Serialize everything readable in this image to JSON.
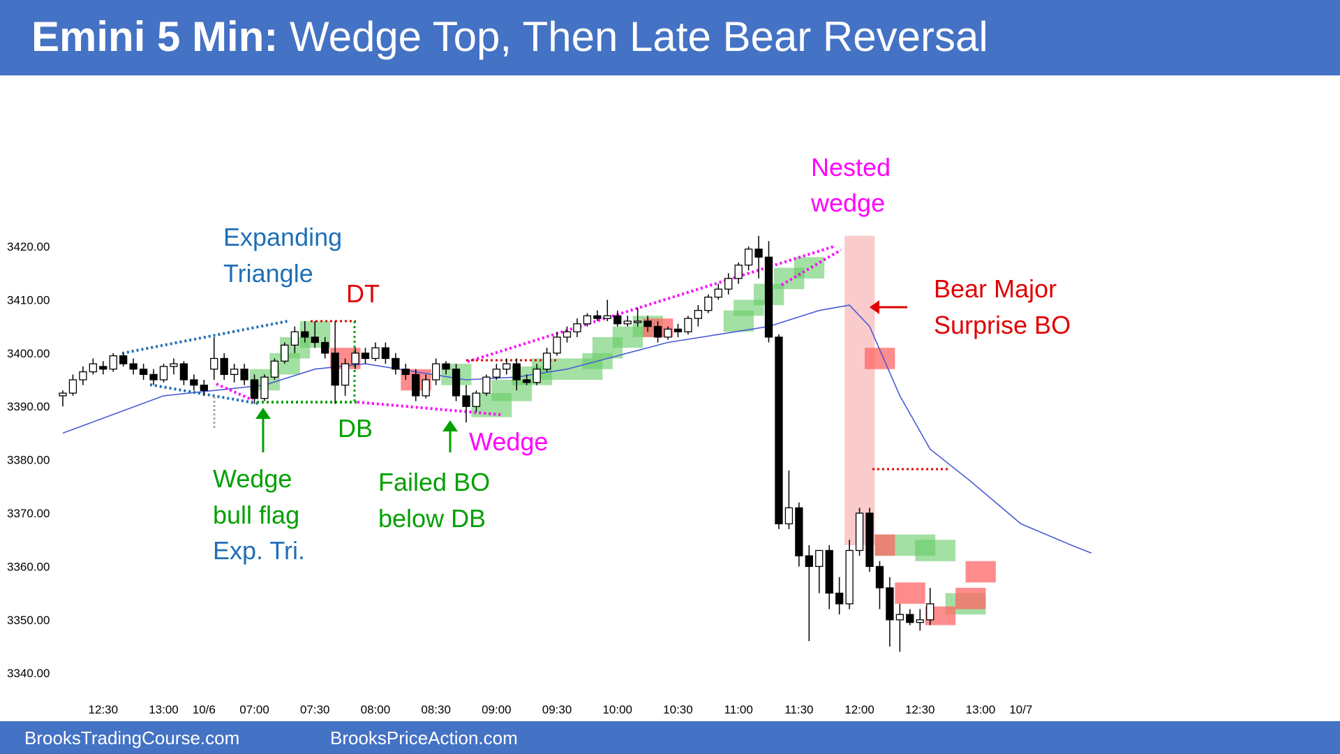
{
  "header": {
    "title_bold": "Emini 5 Min:",
    "title_rest": " Wedge Top, Then Late Bear Reversal"
  },
  "footer": {
    "left": "BrooksTradingCourse.com",
    "right": "BrooksPriceAction.com"
  },
  "colors": {
    "banner": "#4472C4",
    "bull_box": "#66CC66",
    "bear_box": "#FF6666",
    "ema": "#4B5BD6",
    "magenta": "#FF00FF",
    "green_text": "#00A000",
    "blue_text": "#1F6FB5",
    "red_text": "#E00000"
  },
  "chart_data": {
    "type": "candlestick",
    "y_ticks": [
      "3420.00",
      "3410.00",
      "3400.00",
      "3390.00",
      "3380.00",
      "3370.00",
      "3360.00",
      "3350.00",
      "3340.00"
    ],
    "ylim": [
      3336,
      3428
    ],
    "x_ticks": [
      {
        "label": "12:30",
        "bar": 4
      },
      {
        "label": "13:00",
        "bar": 10
      },
      {
        "label": "10/6",
        "bar": 14
      },
      {
        "label": "07:00",
        "bar": 19
      },
      {
        "label": "07:30",
        "bar": 25
      },
      {
        "label": "08:00",
        "bar": 31
      },
      {
        "label": "08:30",
        "bar": 37
      },
      {
        "label": "09:00",
        "bar": 43
      },
      {
        "label": "09:30",
        "bar": 49
      },
      {
        "label": "10:00",
        "bar": 55
      },
      {
        "label": "10:30",
        "bar": 61
      },
      {
        "label": "11:00",
        "bar": 67
      },
      {
        "label": "11:30",
        "bar": 73
      },
      {
        "label": "12:00",
        "bar": 79
      },
      {
        "label": "12:30",
        "bar": 85
      },
      {
        "label": "13:00",
        "bar": 91
      },
      {
        "label": "10/7",
        "bar": 95
      }
    ],
    "candles": [
      [
        3392,
        3393,
        3390,
        3392.5
      ],
      [
        3392.5,
        3396,
        3392,
        3395
      ],
      [
        3395,
        3397.5,
        3394,
        3396.5
      ],
      [
        3396.5,
        3399,
        3396,
        3398
      ],
      [
        3397.5,
        3398.5,
        3396,
        3397
      ],
      [
        3397,
        3400,
        3396.5,
        3399.5
      ],
      [
        3399.5,
        3400,
        3397.5,
        3398
      ],
      [
        3398,
        3399,
        3396,
        3397
      ],
      [
        3397,
        3398,
        3395,
        3396
      ],
      [
        3396,
        3397,
        3394,
        3395
      ],
      [
        3395,
        3398,
        3394.5,
        3397.5
      ],
      [
        3397.5,
        3399,
        3396,
        3398
      ],
      [
        3398,
        3398.5,
        3394,
        3395
      ],
      [
        3395,
        3396,
        3393,
        3394
      ],
      [
        3394,
        3395,
        3392,
        3393
      ],
      [
        3397,
        3403,
        3395,
        3399
      ],
      [
        3399,
        3400,
        3395,
        3396
      ],
      [
        3396,
        3398,
        3394.5,
        3397
      ],
      [
        3397,
        3398,
        3394,
        3395
      ],
      [
        3395,
        3396,
        3390.5,
        3391.5
      ],
      [
        3391.5,
        3396,
        3391,
        3395.5
      ],
      [
        3395.5,
        3399,
        3395,
        3398.5
      ],
      [
        3398.5,
        3402,
        3398,
        3401.5
      ],
      [
        3401.5,
        3405,
        3400,
        3404
      ],
      [
        3404,
        3406,
        3402,
        3403
      ],
      [
        3403,
        3406,
        3401,
        3402
      ],
      [
        3402,
        3403,
        3399,
        3400
      ],
      [
        3400,
        3406,
        3390.5,
        3394
      ],
      [
        3394,
        3399,
        3392,
        3398
      ],
      [
        3398,
        3401,
        3397,
        3400
      ],
      [
        3400,
        3401,
        3398,
        3399
      ],
      [
        3399,
        3402,
        3398.5,
        3401
      ],
      [
        3401,
        3402,
        3398,
        3399
      ],
      [
        3399,
        3400,
        3396,
        3397
      ],
      [
        3397,
        3398,
        3395,
        3396
      ],
      [
        3396,
        3397,
        3391,
        3392
      ],
      [
        3392,
        3396,
        3391.5,
        3395
      ],
      [
        3395,
        3399,
        3394,
        3398
      ],
      [
        3398,
        3398.5,
        3396,
        3397
      ],
      [
        3397,
        3398,
        3391,
        3392
      ],
      [
        3392,
        3394,
        3387,
        3390
      ],
      [
        3390,
        3393,
        3389,
        3392.5
      ],
      [
        3392.5,
        3396,
        3392,
        3395.5
      ],
      [
        3395.5,
        3398,
        3395,
        3397
      ],
      [
        3397,
        3399,
        3396,
        3398
      ],
      [
        3398,
        3399,
        3393,
        3395
      ],
      [
        3395,
        3396,
        3394,
        3394.5
      ],
      [
        3394.5,
        3398,
        3394,
        3397
      ],
      [
        3397,
        3401,
        3396.5,
        3400
      ],
      [
        3400,
        3404,
        3399.5,
        3403
      ],
      [
        3403,
        3405,
        3402,
        3404
      ],
      [
        3404,
        3406.5,
        3403,
        3405.5
      ],
      [
        3405.5,
        3407.5,
        3405,
        3407
      ],
      [
        3407,
        3408,
        3406,
        3406.5
      ],
      [
        3406.5,
        3410,
        3406,
        3407
      ],
      [
        3407,
        3408,
        3405,
        3405.5
      ],
      [
        3405.5,
        3407,
        3405,
        3406
      ],
      [
        3406,
        3408.5,
        3405,
        3406
      ],
      [
        3406,
        3407,
        3404,
        3405
      ],
      [
        3405,
        3406,
        3402,
        3403
      ],
      [
        3403,
        3405,
        3402.5,
        3404.5
      ],
      [
        3404.5,
        3405.5,
        3403,
        3404
      ],
      [
        3404,
        3407,
        3403.5,
        3406.5
      ],
      [
        3406.5,
        3409,
        3405,
        3408
      ],
      [
        3408,
        3411,
        3407.5,
        3410.5
      ],
      [
        3410.5,
        3413,
        3410,
        3412
      ],
      [
        3412,
        3415,
        3411,
        3414
      ],
      [
        3414,
        3417,
        3413,
        3416.5
      ],
      [
        3416.5,
        3420,
        3415.5,
        3419.5
      ],
      [
        3419.5,
        3422,
        3414,
        3418
      ],
      [
        3418,
        3421,
        3402,
        3403
      ],
      [
        3403,
        3403.5,
        3367,
        3368
      ],
      [
        3368,
        3378,
        3367,
        3371
      ],
      [
        3371,
        3372,
        3360,
        3362
      ],
      [
        3362,
        3364,
        3346,
        3360
      ],
      [
        3360,
        3363,
        3355,
        3363
      ],
      [
        3363,
        3364,
        3352,
        3355
      ],
      [
        3355,
        3358,
        3351,
        3353
      ],
      [
        3353,
        3365,
        3352,
        3363
      ],
      [
        3363,
        3371,
        3362,
        3370
      ],
      [
        3370,
        3371,
        3359,
        3360
      ],
      [
        3360,
        3361,
        3352,
        3356
      ],
      [
        3356,
        3358,
        3345,
        3350
      ],
      [
        3350,
        3353,
        3344,
        3351
      ],
      [
        3351,
        3352,
        3349,
        3349.5
      ],
      [
        3349.5,
        3352,
        3348,
        3350
      ],
      [
        3350,
        3356,
        3349,
        3353
      ]
    ],
    "ema": [
      [
        0,
        3385
      ],
      [
        5,
        3388.5
      ],
      [
        10,
        3392
      ],
      [
        15,
        3393
      ],
      [
        20,
        3394
      ],
      [
        25,
        3397
      ],
      [
        30,
        3398
      ],
      [
        35,
        3396.5
      ],
      [
        40,
        3395
      ],
      [
        45,
        3395.5
      ],
      [
        50,
        3397
      ],
      [
        55,
        3399.5
      ],
      [
        60,
        3402
      ],
      [
        65,
        3403.5
      ],
      [
        70,
        3405
      ],
      [
        75,
        3408
      ],
      [
        78,
        3409
      ],
      [
        80,
        3405
      ],
      [
        83,
        3392
      ],
      [
        86,
        3382
      ],
      [
        90,
        3376
      ],
      [
        95,
        3368
      ],
      [
        100,
        3364
      ],
      [
        102,
        3362.5
      ]
    ],
    "bull_boxes": [
      [
        19,
        22,
        3393,
        3397
      ],
      [
        21,
        24,
        3396,
        3400
      ],
      [
        22,
        25,
        3399,
        3403
      ],
      [
        24,
        27,
        3401,
        3406
      ],
      [
        38,
        41,
        3394,
        3398
      ],
      [
        41,
        45,
        3388,
        3392.5
      ],
      [
        43,
        47,
        3391,
        3395
      ],
      [
        45,
        49,
        3394,
        3397.5
      ],
      [
        47,
        51,
        3395,
        3399
      ],
      [
        51,
        54,
        3395,
        3399
      ],
      [
        52,
        55,
        3397,
        3400
      ],
      [
        53,
        56,
        3399,
        3403
      ],
      [
        55,
        58,
        3401,
        3405
      ],
      [
        57,
        60,
        3403,
        3407
      ],
      [
        66,
        69,
        3404,
        3408
      ],
      [
        67,
        70,
        3407,
        3410
      ],
      [
        69,
        72,
        3409,
        3413
      ],
      [
        71,
        74,
        3412,
        3416
      ],
      [
        73,
        76,
        3414,
        3418
      ],
      [
        81,
        87,
        3362,
        3366
      ],
      [
        85,
        89,
        3361,
        3365
      ],
      [
        88,
        92,
        3351,
        3355
      ]
    ],
    "bear_boxes": [
      [
        27,
        30,
        3397,
        3401
      ],
      [
        34,
        37,
        3393,
        3397
      ],
      [
        58,
        61,
        3403,
        3406.5
      ],
      [
        80,
        83,
        3397,
        3401
      ],
      [
        81,
        83,
        3362,
        3366
      ],
      [
        83,
        86,
        3353,
        3357
      ],
      [
        86,
        89,
        3349,
        3352.5
      ],
      [
        90,
        93,
        3357,
        3361
      ],
      [
        89,
        92,
        3352,
        3356
      ]
    ],
    "tall_bar_box": [
      78,
      81,
      3364,
      3422
    ],
    "annotations": [
      {
        "key": "exp_tri",
        "text_lines": [
          "Expanding",
          "Triangle"
        ],
        "color": "blue"
      },
      {
        "key": "dt",
        "text_lines": [
          "DT"
        ],
        "color": "red"
      },
      {
        "key": "db",
        "text_lines": [
          "DB"
        ],
        "color": "green"
      },
      {
        "key": "wedge_bull",
        "text_lines": [
          "Wedge",
          "bull flag",
          "Exp. Tri."
        ],
        "color": "green_blue"
      },
      {
        "key": "failed_bo",
        "text_lines": [
          "Failed BO",
          "below DB"
        ],
        "color": "green"
      },
      {
        "key": "wedge",
        "text_lines": [
          "Wedge"
        ],
        "color": "magenta"
      },
      {
        "key": "nested",
        "text_lines": [
          "Nested",
          "wedge"
        ],
        "color": "magenta"
      },
      {
        "key": "bear_major",
        "text_lines": [
          "Bear Major",
          "Surprise BO"
        ],
        "color": "red"
      }
    ],
    "grid": false
  },
  "labels": {
    "exp_tri_1": "Expanding",
    "exp_tri_2": "Triangle",
    "dt": "DT",
    "db": "DB",
    "wedge_bull_1": "Wedge",
    "wedge_bull_2": "bull flag",
    "wedge_bull_3": "Exp. Tri.",
    "failed_bo_1": "Failed BO",
    "failed_bo_2": "below DB",
    "wedge": "Wedge",
    "nested_1": "Nested",
    "nested_2": "wedge",
    "bear_major_1": "Bear Major",
    "bear_major_2": "Surprise BO"
  }
}
